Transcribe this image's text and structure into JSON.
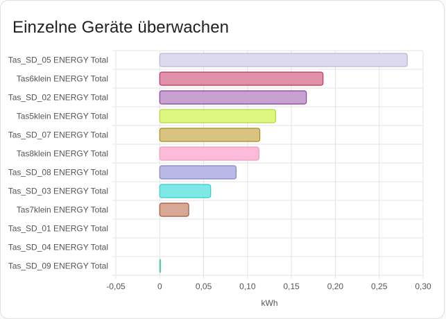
{
  "card": {
    "title": "Einzelne Geräte überwachen"
  },
  "chart_data": {
    "type": "bar",
    "orientation": "horizontal",
    "categories": [
      "Tas_SD_05 ENERGY Total",
      "Tas6klein ENERGY Total",
      "Tas_SD_02 ENERGY Total",
      "Tas5klein ENERGY Total",
      "Tas_SD_07 ENERGY Total",
      "Tas8klein ENERGY Total",
      "Tas_SD_08 ENERGY Total",
      "Tas_SD_03 ENERGY Total",
      "Tas7klein ENERGY Total",
      "Tas_SD_01 ENERGY Total",
      "Tas_SD_04 ENERGY Total",
      "Tas_SD_09 ENERGY Total"
    ],
    "values": [
      0.282,
      0.186,
      0.167,
      0.132,
      0.114,
      0.113,
      0.087,
      0.058,
      0.033,
      0,
      0,
      0.001
    ],
    "colors": [
      {
        "fill": "#dcdaec",
        "stroke": "#b9b6d6"
      },
      {
        "fill": "#e090a8",
        "stroke": "#c0305a"
      },
      {
        "fill": "#c7a1cf",
        "stroke": "#8a3e9a"
      },
      {
        "fill": "#ddf77f",
        "stroke": "#b0d83c"
      },
      {
        "fill": "#d8c380",
        "stroke": "#a88d18"
      },
      {
        "fill": "#fbbbd9",
        "stroke": "#f19ac4"
      },
      {
        "fill": "#bab9e6",
        "stroke": "#8483cc"
      },
      {
        "fill": "#7de8e6",
        "stroke": "#2fd0cc"
      },
      {
        "fill": "#d9a894",
        "stroke": "#a0563a"
      },
      {
        "fill": "#ffffff",
        "stroke": "#dddddd"
      },
      {
        "fill": "#ffffff",
        "stroke": "#dddddd"
      },
      {
        "fill": "#9fe0c6",
        "stroke": "#5fc9a0"
      }
    ],
    "xlim": [
      -0.05,
      0.3
    ],
    "xticks": [
      -0.05,
      0,
      0.05,
      0.1,
      0.15,
      0.2,
      0.25,
      0.3
    ],
    "xtick_labels": [
      "-0,05",
      "0",
      "0,05",
      "0,10",
      "0,15",
      "0,20",
      "0,25",
      "0,30"
    ],
    "xlabel": "kWh",
    "grid": true,
    "legend": "none"
  }
}
